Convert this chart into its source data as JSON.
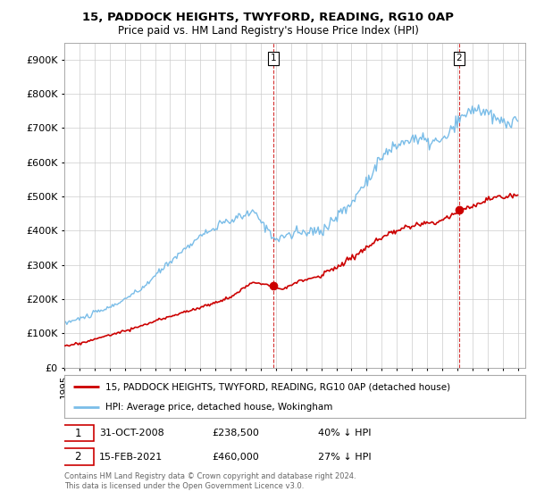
{
  "title": "15, PADDOCK HEIGHTS, TWYFORD, READING, RG10 0AP",
  "subtitle": "Price paid vs. HM Land Registry's House Price Index (HPI)",
  "legend_line1": "15, PADDOCK HEIGHTS, TWYFORD, READING, RG10 0AP (detached house)",
  "legend_line2": "HPI: Average price, detached house, Wokingham",
  "note1_date": "31-OCT-2008",
  "note1_price": "£238,500",
  "note1_hpi": "40% ↓ HPI",
  "note2_date": "15-FEB-2021",
  "note2_price": "£460,000",
  "note2_hpi": "27% ↓ HPI",
  "footer": "Contains HM Land Registry data © Crown copyright and database right 2024.\nThis data is licensed under the Open Government Licence v3.0.",
  "hpi_color": "#7abde8",
  "price_color": "#cc0000",
  "vline_color": "#cc0000",
  "background_color": "#ffffff",
  "grid_color": "#cccccc",
  "ylim": [
    0,
    950000
  ],
  "yticks": [
    0,
    100000,
    200000,
    300000,
    400000,
    500000,
    600000,
    700000,
    800000,
    900000
  ],
  "ytick_labels": [
    "£0",
    "£100K",
    "£200K",
    "£300K",
    "£400K",
    "£500K",
    "£600K",
    "£700K",
    "£800K",
    "£900K"
  ],
  "sale1_x": 2008.83,
  "sale1_y": 238500,
  "sale2_x": 2021.12,
  "sale2_y": 460000,
  "xmin": 1995.0,
  "xmax": 2025.5
}
